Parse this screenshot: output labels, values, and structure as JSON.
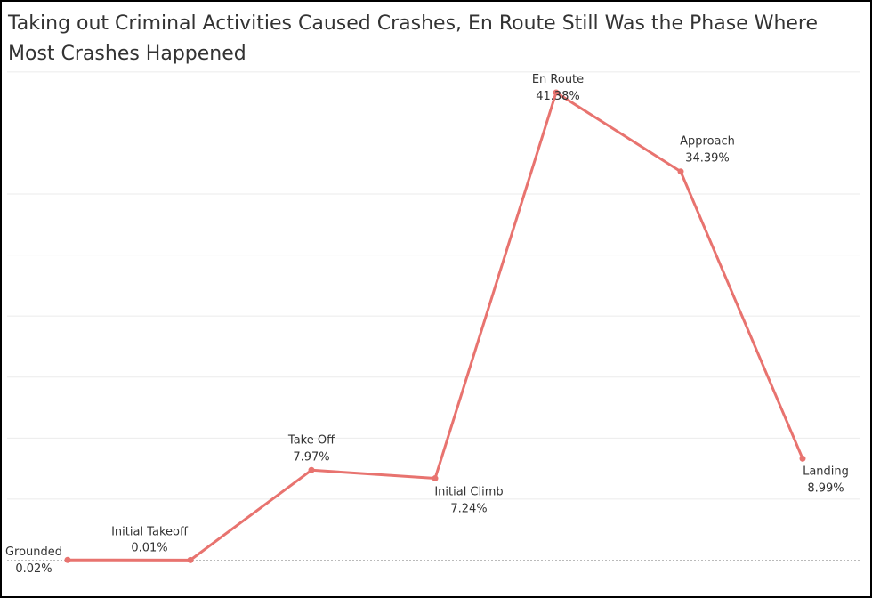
{
  "chart_data": {
    "type": "line",
    "title": "Taking out Criminal Activities Caused Crashes, En Route Still Was the Phase Where Most Crashes Happened",
    "categories": [
      "Grounded",
      "Initial Takeoff",
      "Take Off",
      "Initial Climb",
      "En Route",
      "Approach",
      "Landing"
    ],
    "series": [
      {
        "values": [
          0.02,
          0.01,
          7.97,
          7.24,
          41.38,
          34.39,
          8.99
        ]
      }
    ],
    "value_labels": [
      "0.02%",
      "0.01%",
      "7.97%",
      "7.24%",
      "41.38%",
      "34.39%",
      "8.99%"
    ],
    "ylim": [
      0,
      45
    ],
    "grid": "horizontal",
    "colors": {
      "line": "#E8736F",
      "grid": "#ebebeb",
      "baseline": "#bbbbbb"
    }
  }
}
